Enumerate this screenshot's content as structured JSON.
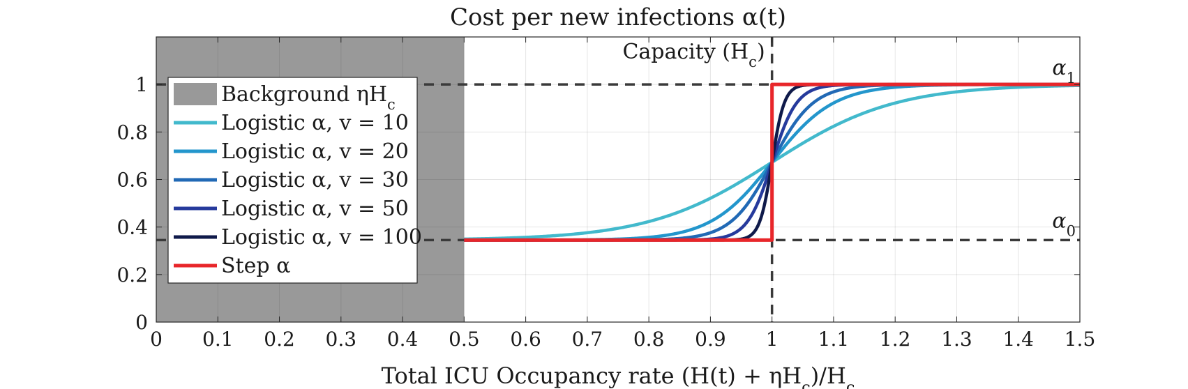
{
  "chart_data": {
    "type": "line",
    "title": "Cost per new infections α(t)",
    "xlabel": "Total ICU Occupancy rate (H(t) + ηH",
    "xlabel_sub": "c",
    "xlabel_tail": ")/H",
    "xlabel_sub2": "c",
    "ylabel": "",
    "xlim": [
      0,
      1.5
    ],
    "ylim": [
      0,
      1.2
    ],
    "xticks": [
      0,
      0.1,
      0.2,
      0.3,
      0.4,
      0.5,
      0.6,
      0.7,
      0.8,
      0.9,
      1,
      1.1,
      1.2,
      1.3,
      1.4,
      1.5
    ],
    "xtick_labels": [
      "0",
      "0.1",
      "0.2",
      "0.3",
      "0.4",
      "0.5",
      "0.6",
      "0.7",
      "0.8",
      "0.9",
      "1",
      "1.1",
      "1.2",
      "1.3",
      "1.4",
      "1.5"
    ],
    "yticks": [
      0,
      0.2,
      0.4,
      0.6,
      0.8,
      1
    ],
    "ytick_labels": [
      "0",
      "0.2",
      "0.4",
      "0.6",
      "0.8",
      "1"
    ],
    "grid": true,
    "legend_position": "left, inside the shaded background region",
    "background_region": {
      "x": [
        0,
        0.5
      ],
      "label": "Background ηH",
      "label_sub": "c",
      "color": "#999999"
    },
    "alpha0": 0.345,
    "alpha1": 1.0,
    "capacity_x": 1.0,
    "capacity_label": "Capacity (H",
    "capacity_label_sub": "c",
    "capacity_label_tail": ")",
    "alpha1_label": "α",
    "alpha1_label_sub": "1",
    "alpha0_label": "α",
    "alpha0_label_sub": "0",
    "series": [
      {
        "name": "Logistic α, v = 10",
        "kind": "logistic",
        "v": 10,
        "color": "#42b9cc"
      },
      {
        "name": "Logistic α, v = 20",
        "kind": "logistic",
        "v": 20,
        "color": "#2396cc"
      },
      {
        "name": "Logistic α, v = 30",
        "kind": "logistic",
        "v": 30,
        "color": "#2169b5"
      },
      {
        "name": "Logistic α, v = 50",
        "kind": "logistic",
        "v": 50,
        "color": "#263a9c"
      },
      {
        "name": "Logistic α, v = 100",
        "kind": "logistic",
        "v": 100,
        "color": "#0f1a4a"
      },
      {
        "name": "Step α",
        "kind": "step",
        "color": "#e8262a"
      }
    ],
    "x_range": [
      0.5,
      1.5
    ],
    "reference_line_color": "#3a3a3a"
  }
}
